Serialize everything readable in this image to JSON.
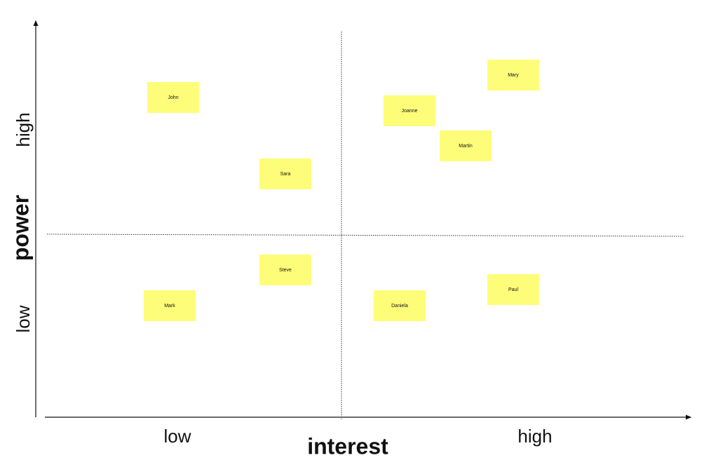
{
  "axes": {
    "y": {
      "title": "power",
      "low": "low",
      "high": "high"
    },
    "x": {
      "title": "interest",
      "low": "low",
      "high": "high"
    }
  },
  "notes": [
    "John",
    "Sara",
    "Joanne",
    "Mary",
    "Martin",
    "Steve",
    "Mark",
    "Daniela",
    "Paul"
  ]
}
